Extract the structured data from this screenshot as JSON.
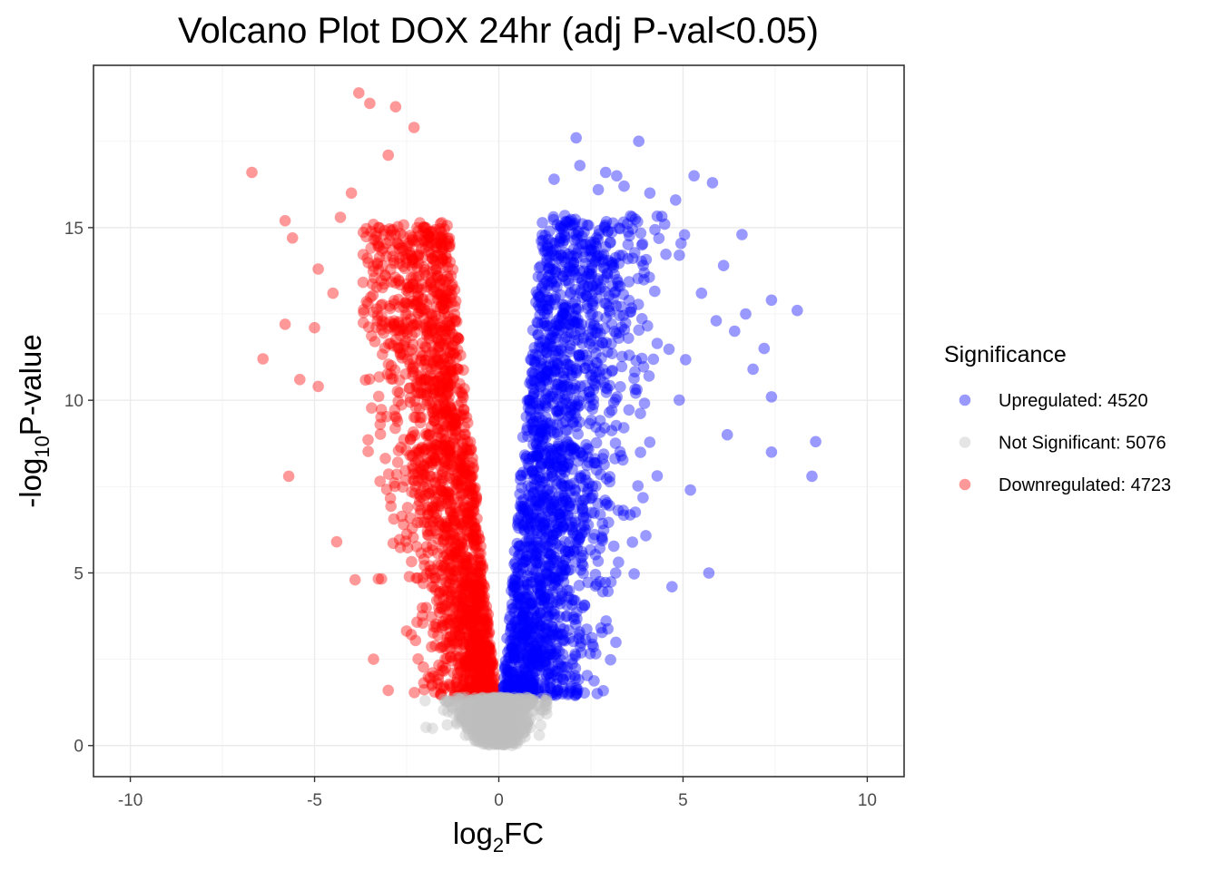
{
  "chart_data": {
    "type": "scatter",
    "title": "Volcano Plot DOX 24hr (adj P-val<0.05)",
    "xlabel": {
      "main": "log",
      "sub": "2",
      "suffix": "FC"
    },
    "ylabel": {
      "prefix": "-log",
      "sub": "10",
      "suffix": "P-value"
    },
    "xlim": [
      -11,
      11
    ],
    "ylim": [
      -0.9,
      19.7
    ],
    "x_ticks": [
      -10,
      -5,
      0,
      5,
      10
    ],
    "x_tick_labels": [
      "-10",
      "-5",
      "0",
      "5",
      "10"
    ],
    "y_ticks": [
      0,
      5,
      10,
      15
    ],
    "y_tick_labels": [
      "0",
      "5",
      "10",
      "15"
    ],
    "grid": true,
    "legend": {
      "title": "Significance",
      "position": "right",
      "entries": [
        {
          "label": "Upregulated: 4520",
          "color": "#0000ff",
          "series": "up"
        },
        {
          "label": "Not Significant: 5076",
          "color": "#bebebe",
          "series": "ns"
        },
        {
          "label": "Downregulated: 4723",
          "color": "#ff0000",
          "series": "down"
        }
      ]
    },
    "series": [
      {
        "name": "Upregulated",
        "count": 4520,
        "color": "#0000ff",
        "opacity": 0.4,
        "outliers": [
          [
            2.1,
            17.6
          ],
          [
            3.8,
            17.5
          ],
          [
            2.2,
            16.8
          ],
          [
            2.9,
            16.6
          ],
          [
            3.2,
            16.5
          ],
          [
            5.3,
            16.5
          ],
          [
            5.8,
            16.3
          ],
          [
            3.4,
            16.2
          ],
          [
            1.5,
            16.4
          ],
          [
            2.7,
            16.1
          ],
          [
            4.1,
            16.0
          ],
          [
            4.8,
            15.8
          ],
          [
            6.6,
            14.8
          ],
          [
            6.1,
            13.9
          ],
          [
            7.4,
            12.9
          ],
          [
            8.1,
            12.6
          ],
          [
            6.7,
            12.5
          ],
          [
            7.2,
            11.5
          ],
          [
            8.6,
            8.8
          ],
          [
            7.4,
            8.5
          ],
          [
            8.5,
            7.8
          ],
          [
            5.7,
            5.0
          ],
          [
            4.7,
            4.6
          ],
          [
            5.2,
            7.4
          ],
          [
            6.2,
            9.0
          ],
          [
            6.9,
            10.9
          ],
          [
            7.4,
            10.1
          ],
          [
            5.9,
            12.3
          ],
          [
            6.4,
            12.0
          ],
          [
            5.5,
            13.1
          ],
          [
            4.9,
            14.2
          ],
          [
            4.5,
            15.1
          ]
        ],
        "region": {
          "x_min": 0.1,
          "x_max": 5.2,
          "y_min": 1.4,
          "y_max": 15.5
        }
      },
      {
        "name": "Not Significant",
        "count": 5076,
        "color": "#bebebe",
        "opacity": 0.4,
        "outliers": [
          [
            -2.0,
            1.3
          ],
          [
            -1.4,
            0.6
          ],
          [
            1.3,
            1.3
          ],
          [
            1.1,
            0.3
          ],
          [
            -1.8,
            0.5
          ]
        ],
        "region": {
          "x_min": -2.1,
          "x_max": 1.4,
          "y_min": 0,
          "y_max": 1.4
        }
      },
      {
        "name": "Downregulated",
        "count": 4723,
        "color": "#ff0000",
        "opacity": 0.4,
        "outliers": [
          [
            -3.8,
            18.9
          ],
          [
            -3.5,
            18.6
          ],
          [
            -2.8,
            18.5
          ],
          [
            -2.3,
            17.9
          ],
          [
            -6.7,
            16.6
          ],
          [
            -5.8,
            15.2
          ],
          [
            -5.6,
            14.7
          ],
          [
            -4.9,
            13.8
          ],
          [
            -4.5,
            13.1
          ],
          [
            -5.8,
            12.2
          ],
          [
            -5.0,
            12.1
          ],
          [
            -6.4,
            11.2
          ],
          [
            -5.4,
            10.6
          ],
          [
            -4.9,
            10.4
          ],
          [
            -5.7,
            7.8
          ],
          [
            -4.4,
            5.9
          ],
          [
            -3.4,
            2.5
          ],
          [
            -3.0,
            1.6
          ],
          [
            -3.9,
            4.8
          ],
          [
            -4.3,
            15.3
          ],
          [
            -4.0,
            16.0
          ],
          [
            -3.0,
            17.1
          ]
        ],
        "region": {
          "x_min": -3.7,
          "x_max": -0.05,
          "y_min": 1.4,
          "y_max": 15.3
        }
      }
    ]
  }
}
